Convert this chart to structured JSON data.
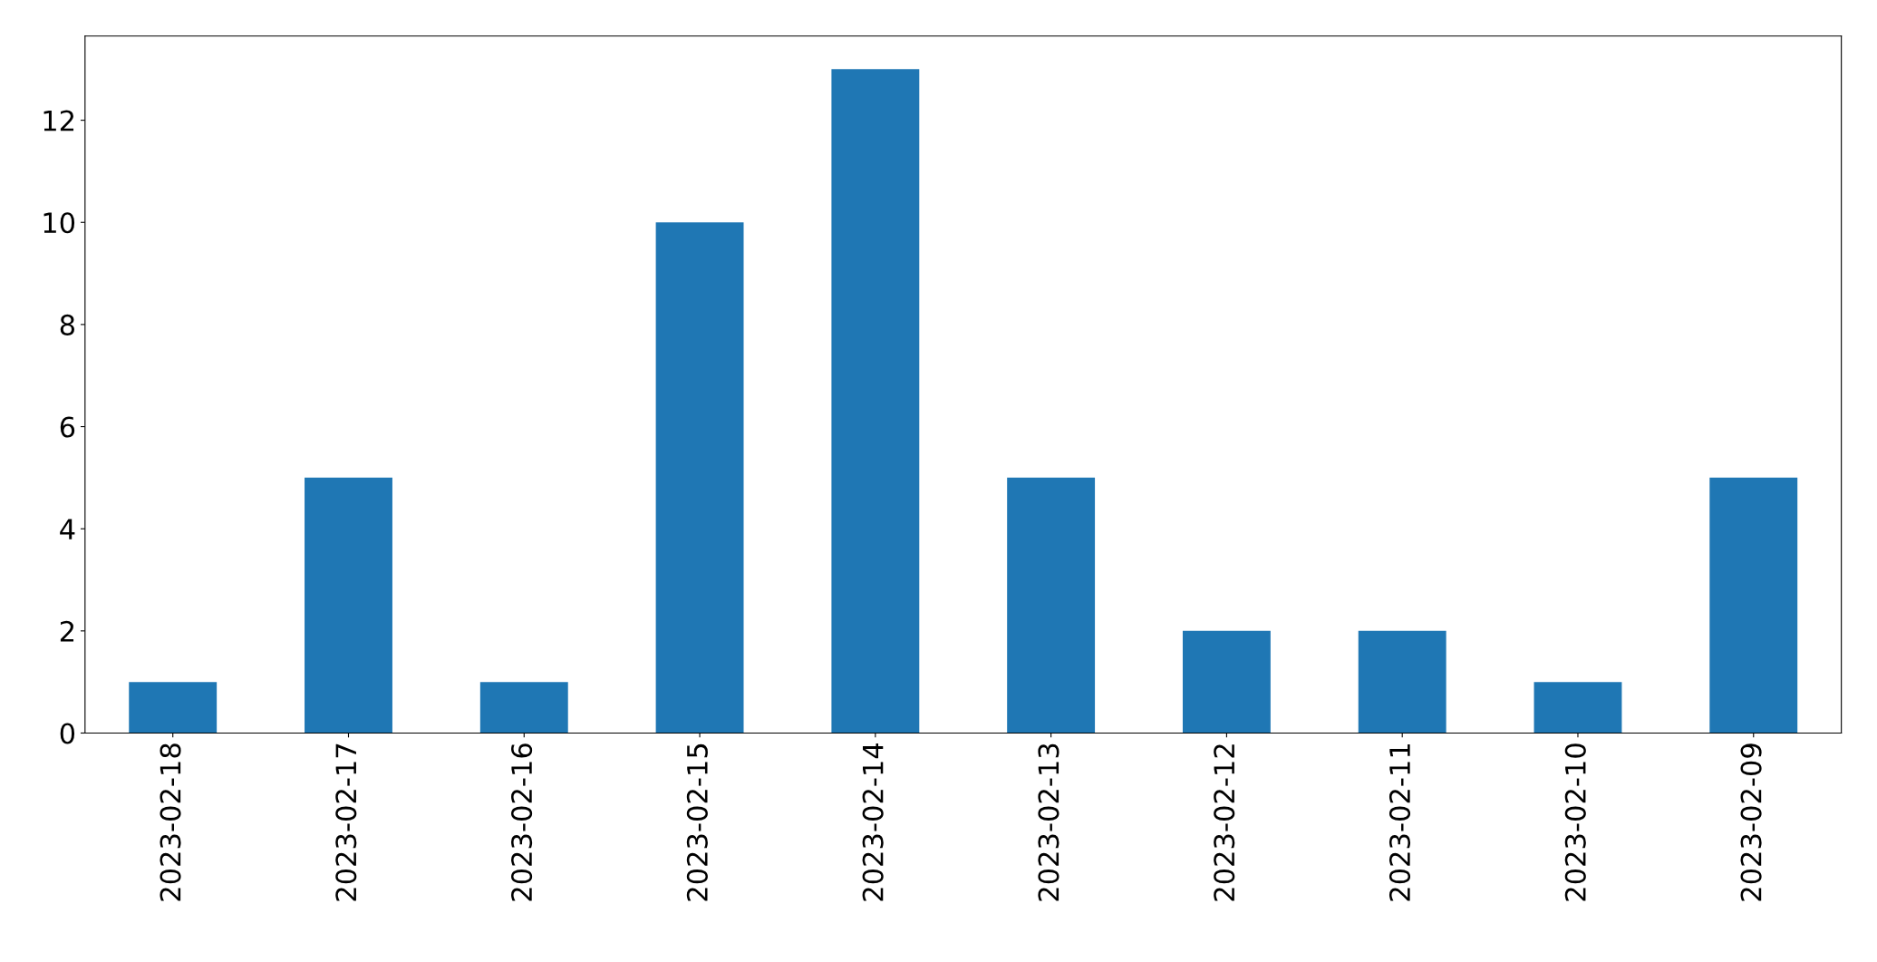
{
  "chart_data": {
    "type": "bar",
    "categories": [
      "2023-02-18",
      "2023-02-17",
      "2023-02-16",
      "2023-02-15",
      "2023-02-14",
      "2023-02-13",
      "2023-02-12",
      "2023-02-11",
      "2023-02-10",
      "2023-02-09"
    ],
    "values": [
      1,
      5,
      1,
      10,
      13,
      5,
      2,
      2,
      1,
      5
    ],
    "color": "#1f77b4",
    "ylim": [
      0,
      13.65
    ],
    "yticks": [
      0,
      2,
      4,
      6,
      8,
      10,
      12
    ],
    "grid": false,
    "legend": false
  }
}
